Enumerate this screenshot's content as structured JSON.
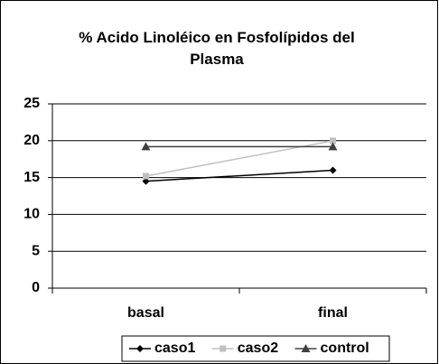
{
  "chart_data": {
    "type": "line",
    "title": "% Acido Linoléico en Fosfolípidos del Plasma",
    "categories": [
      "basal",
      "final"
    ],
    "series": [
      {
        "name": "caso1",
        "color": "#000000",
        "marker": "diamond",
        "values": [
          14.5,
          16
        ]
      },
      {
        "name": "caso2",
        "color": "#c0c0c0",
        "marker": "square",
        "values": [
          15.2,
          20
        ]
      },
      {
        "name": "control",
        "color": "#404040",
        "marker": "triangle",
        "values": [
          19.2,
          19.2
        ]
      }
    ],
    "ylim": [
      0,
      25
    ],
    "yticks": [
      0,
      5,
      10,
      15,
      20,
      25
    ],
    "grid": true,
    "legend": "bottom"
  }
}
